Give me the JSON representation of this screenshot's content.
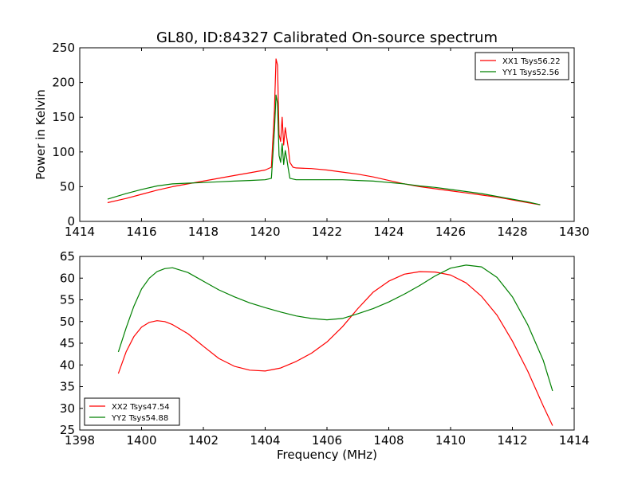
{
  "page_title": "GL80, ID:84327 Calibrated On-source spectrum",
  "chart_data": [
    {
      "type": "line",
      "title": "GL80, ID:84327 Calibrated On-source spectrum",
      "xlabel": "",
      "ylabel": "Power in Kelvin",
      "xlim": [
        1414,
        1430
      ],
      "ylim": [
        0,
        250
      ],
      "xticks": [
        "1414",
        "1416",
        "1418",
        "1420",
        "1422",
        "1424",
        "1426",
        "1428",
        "1430"
      ],
      "yticks": [
        "0",
        "50",
        "100",
        "150",
        "200",
        "250"
      ],
      "grid": false,
      "legend_position": "top-right",
      "series": [
        {
          "name": "XX1 Tsys56.22",
          "color": "#ff0000",
          "x": [
            1414.9,
            1415.5,
            1416.0,
            1416.5,
            1417.0,
            1417.5,
            1418.0,
            1418.5,
            1419.0,
            1419.5,
            1420.0,
            1420.2,
            1420.3,
            1420.35,
            1420.4,
            1420.45,
            1420.5,
            1420.55,
            1420.6,
            1420.65,
            1420.7,
            1420.75,
            1420.8,
            1420.9,
            1421.0,
            1421.5,
            1422.0,
            1422.5,
            1423.0,
            1423.5,
            1424.0,
            1424.5,
            1425.0,
            1425.5,
            1426.0,
            1426.5,
            1427.0,
            1427.5,
            1428.0,
            1428.5,
            1428.9
          ],
          "y": [
            27,
            33,
            39,
            45,
            50,
            54,
            58,
            62,
            66,
            70,
            74,
            78,
            160,
            234,
            225,
            125,
            115,
            150,
            110,
            135,
            120,
            105,
            85,
            78,
            77,
            76,
            74,
            71,
            68,
            64,
            59,
            54,
            50,
            47,
            44,
            41,
            38,
            35,
            31,
            27,
            24
          ]
        },
        {
          "name": "YY1 Tsys52.56",
          "color": "#008000",
          "x": [
            1414.9,
            1415.5,
            1416.0,
            1416.5,
            1417.0,
            1417.5,
            1418.0,
            1418.5,
            1419.0,
            1419.5,
            1420.0,
            1420.2,
            1420.3,
            1420.35,
            1420.4,
            1420.45,
            1420.5,
            1420.55,
            1420.6,
            1420.65,
            1420.7,
            1420.75,
            1420.8,
            1420.9,
            1421.0,
            1421.5,
            1422.0,
            1422.5,
            1423.0,
            1423.5,
            1424.0,
            1424.5,
            1425.0,
            1425.5,
            1426.0,
            1426.5,
            1427.0,
            1427.5,
            1428.0,
            1428.5,
            1428.9
          ],
          "y": [
            32,
            40,
            46,
            51,
            54,
            55,
            56,
            57,
            58,
            59,
            60,
            62,
            130,
            182,
            170,
            95,
            85,
            112,
            82,
            102,
            90,
            75,
            62,
            61,
            60,
            60,
            60,
            60,
            59,
            58,
            56,
            54,
            51,
            49,
            46,
            43,
            40,
            36,
            32,
            28,
            24
          ]
        }
      ]
    },
    {
      "type": "line",
      "title": "",
      "xlabel": "Frequency (MHz)",
      "ylabel": "",
      "xlim": [
        1398,
        1414
      ],
      "ylim": [
        25,
        65
      ],
      "xticks": [
        "1398",
        "1400",
        "1402",
        "1404",
        "1406",
        "1408",
        "1410",
        "1412",
        "1414"
      ],
      "yticks": [
        "25",
        "30",
        "35",
        "40",
        "45",
        "50",
        "55",
        "60",
        "65"
      ],
      "grid": false,
      "legend_position": "bottom-left",
      "series": [
        {
          "name": "XX2 Tsys47.54",
          "color": "#ff0000",
          "x": [
            1399.25,
            1399.5,
            1399.75,
            1400.0,
            1400.25,
            1400.5,
            1400.75,
            1401.0,
            1401.5,
            1402.0,
            1402.5,
            1403.0,
            1403.5,
            1404.0,
            1404.5,
            1405.0,
            1405.5,
            1406.0,
            1406.5,
            1407.0,
            1407.5,
            1408.0,
            1408.5,
            1409.0,
            1409.5,
            1410.0,
            1410.5,
            1411.0,
            1411.5,
            1412.0,
            1412.5,
            1413.0,
            1413.3
          ],
          "y": [
            38,
            43,
            46.5,
            48.7,
            49.8,
            50.2,
            50.0,
            49.3,
            47.2,
            44.3,
            41.5,
            39.7,
            38.8,
            38.6,
            39.3,
            40.8,
            42.7,
            45.3,
            48.8,
            53.0,
            56.8,
            59.3,
            60.9,
            61.5,
            61.4,
            60.7,
            58.9,
            55.8,
            51.5,
            45.5,
            38.5,
            30.5,
            26.0
          ]
        },
        {
          "name": "YY2 Tsys54.88",
          "color": "#008000",
          "x": [
            1399.25,
            1399.5,
            1399.75,
            1400.0,
            1400.25,
            1400.5,
            1400.75,
            1401.0,
            1401.5,
            1402.0,
            1402.5,
            1403.0,
            1403.5,
            1404.0,
            1404.5,
            1405.0,
            1405.5,
            1406.0,
            1406.5,
            1407.0,
            1407.5,
            1408.0,
            1408.5,
            1409.0,
            1409.5,
            1410.0,
            1410.5,
            1411.0,
            1411.5,
            1412.0,
            1412.5,
            1413.0,
            1413.3
          ],
          "y": [
            43,
            48.5,
            53.5,
            57.5,
            60.0,
            61.5,
            62.2,
            62.4,
            61.3,
            59.3,
            57.3,
            55.7,
            54.3,
            53.2,
            52.2,
            51.3,
            50.7,
            50.4,
            50.7,
            51.8,
            53.0,
            54.5,
            56.3,
            58.3,
            60.5,
            62.3,
            63.0,
            62.6,
            60.2,
            55.7,
            49.2,
            41.0,
            34.0
          ]
        }
      ]
    }
  ]
}
